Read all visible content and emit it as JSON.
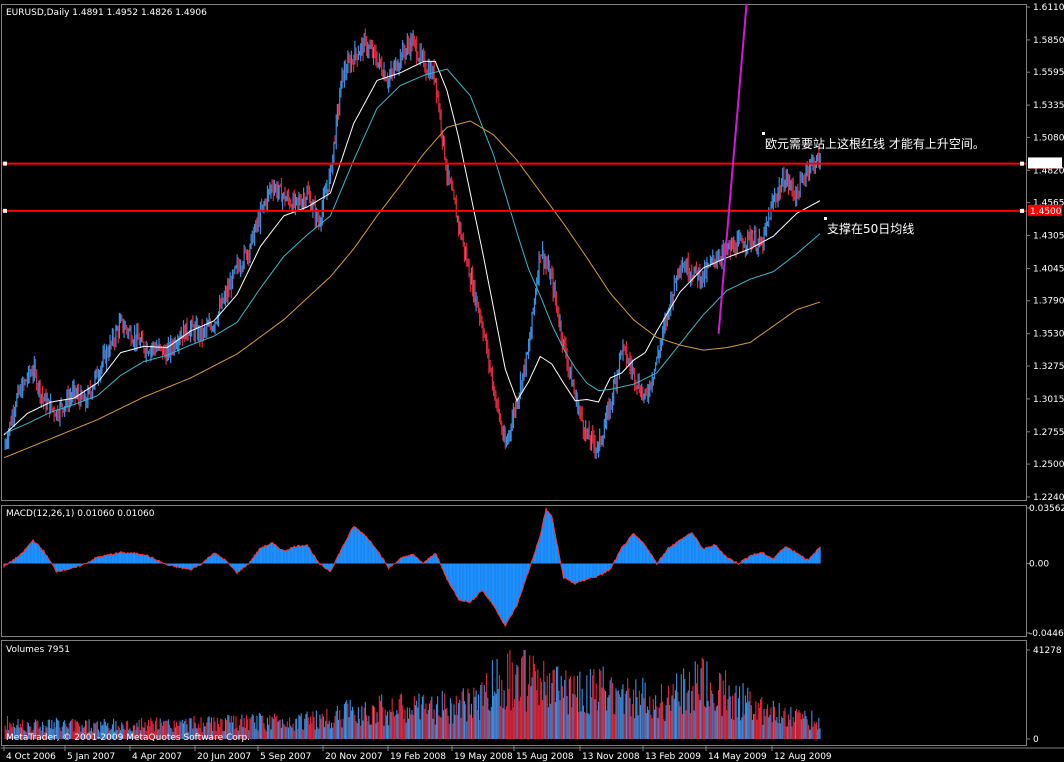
{
  "panels": {
    "price_header": "EURUSD,Daily  1.4891 1.4952 1.4826 1.4906",
    "macd_header": "MACD(12,26,1) 0.01060 0.01060",
    "volume_header": "Volumes 7951",
    "copyright": "MetaTrader, © 2001-2009 MetaQuotes Software Corp."
  },
  "annotations": {
    "resistance_note": "欧元需要站上这根红线 才能有上升空间。",
    "support_note": "支撑在50日均线"
  },
  "colors": {
    "background": "#000000",
    "panel_border": "#808080",
    "bull": "#3b8fe0",
    "bear": "#e0283c",
    "ma_fast": "#ffffff",
    "ma_mid": "#39b7c9",
    "ma_slow": "#d49a3a",
    "hline": "#ff0000",
    "trend": "#d21ad6",
    "macd_fill": "#1e90ff",
    "macd_edge": "#ff3030"
  },
  "chart_data": [
    {
      "type": "candlestick",
      "symbol": "EURUSD",
      "timeframe": "Daily",
      "last": {
        "open": 1.4891,
        "high": 1.4952,
        "low": 1.4826,
        "close": 1.4906
      },
      "ylim": [
        1.224,
        1.611
      ],
      "y_ticks": [
        "1.6110",
        "1.5850",
        "1.5595",
        "1.5335",
        "1.5080",
        "1.4820",
        "1.4565",
        "1.4305",
        "1.4045",
        "1.3790",
        "1.3530",
        "1.3275",
        "1.3015",
        "1.2755",
        "1.2500",
        "1.2240"
      ],
      "price_labels": [
        "1.4873",
        "1.4906",
        "1.4500"
      ],
      "x_ticks": [
        "4 Oct 2006",
        "5 Jan 2007",
        "4 Apr 2007",
        "20 Jun 2007",
        "5 Sep 2007",
        "20 Nov 2007",
        "19 Feb 2008",
        "19 May 2008",
        "15 Aug 2008",
        "13 Nov 2008",
        "13 Feb 2009",
        "14 May 2009",
        "12 Aug 2009"
      ],
      "close_path": [
        [
          0,
          1.262
        ],
        [
          10,
          1.3
        ],
        [
          20,
          1.318
        ],
        [
          25,
          1.325
        ],
        [
          34,
          1.3
        ],
        [
          45,
          1.291
        ],
        [
          60,
          1.306
        ],
        [
          70,
          1.298
        ],
        [
          80,
          1.322
        ],
        [
          90,
          1.341
        ],
        [
          100,
          1.361
        ],
        [
          110,
          1.352
        ],
        [
          120,
          1.343
        ],
        [
          130,
          1.342
        ],
        [
          140,
          1.337
        ],
        [
          150,
          1.352
        ],
        [
          160,
          1.357
        ],
        [
          170,
          1.352
        ],
        [
          180,
          1.362
        ],
        [
          190,
          1.382
        ],
        [
          200,
          1.405
        ],
        [
          210,
          1.42
        ],
        [
          220,
          1.447
        ],
        [
          230,
          1.471
        ],
        [
          240,
          1.461
        ],
        [
          250,
          1.454
        ],
        [
          260,
          1.464
        ],
        [
          270,
          1.441
        ],
        [
          280,
          1.479
        ],
        [
          290,
          1.556
        ],
        [
          300,
          1.572
        ],
        [
          310,
          1.582
        ],
        [
          320,
          1.569
        ],
        [
          330,
          1.553
        ],
        [
          340,
          1.572
        ],
        [
          350,
          1.584
        ],
        [
          360,
          1.566
        ],
        [
          370,
          1.556
        ],
        [
          380,
          1.48
        ],
        [
          390,
          1.44
        ],
        [
          400,
          1.398
        ],
        [
          410,
          1.362
        ],
        [
          420,
          1.31
        ],
        [
          430,
          1.263
        ],
        [
          440,
          1.301
        ],
        [
          450,
          1.34
        ],
        [
          460,
          1.42
        ],
        [
          470,
          1.395
        ],
        [
          480,
          1.345
        ],
        [
          490,
          1.303
        ],
        [
          500,
          1.272
        ],
        [
          510,
          1.263
        ],
        [
          520,
          1.296
        ],
        [
          530,
          1.342
        ],
        [
          540,
          1.322
        ],
        [
          550,
          1.301
        ],
        [
          560,
          1.332
        ],
        [
          570,
          1.372
        ],
        [
          580,
          1.41
        ],
        [
          590,
          1.402
        ],
        [
          600,
          1.398
        ],
        [
          610,
          1.413
        ],
        [
          620,
          1.419
        ],
        [
          630,
          1.423
        ],
        [
          640,
          1.429
        ],
        [
          650,
          1.422
        ],
        [
          660,
          1.458
        ],
        [
          670,
          1.476
        ],
        [
          680,
          1.462
        ],
        [
          690,
          1.486
        ],
        [
          700,
          1.4906
        ]
      ],
      "moving_averages": [
        {
          "role": "fast",
          "color_key": "ma_fast",
          "points": [
            [
              0,
              1.273
            ],
            [
              20,
              1.29
            ],
            [
              40,
              1.299
            ],
            [
              60,
              1.302
            ],
            [
              80,
              1.314
            ],
            [
              100,
              1.338
            ],
            [
              120,
              1.343
            ],
            [
              140,
              1.342
            ],
            [
              160,
              1.355
            ],
            [
              180,
              1.363
            ],
            [
              200,
              1.384
            ],
            [
              220,
              1.422
            ],
            [
              240,
              1.446
            ],
            [
              260,
              1.453
            ],
            [
              280,
              1.464
            ],
            [
              300,
              1.519
            ],
            [
              320,
              1.553
            ],
            [
              340,
              1.559
            ],
            [
              360,
              1.568
            ],
            [
              370,
              1.568
            ],
            [
              380,
              1.545
            ],
            [
              390,
              1.508
            ],
            [
              400,
              1.464
            ],
            [
              410,
              1.42
            ],
            [
              420,
              1.373
            ],
            [
              430,
              1.325
            ],
            [
              440,
              1.3
            ],
            [
              450,
              1.315
            ],
            [
              460,
              1.335
            ],
            [
              470,
              1.329
            ],
            [
              480,
              1.314
            ],
            [
              490,
              1.3
            ],
            [
              500,
              1.301
            ],
            [
              510,
              1.299
            ],
            [
              520,
              1.318
            ],
            [
              530,
              1.322
            ],
            [
              540,
              1.332
            ],
            [
              550,
              1.338
            ],
            [
              560,
              1.355
            ],
            [
              580,
              1.386
            ],
            [
              600,
              1.405
            ],
            [
              620,
              1.413
            ],
            [
              640,
              1.42
            ],
            [
              660,
              1.43
            ],
            [
              680,
              1.448
            ],
            [
              700,
              1.458
            ]
          ]
        },
        {
          "role": "mid",
          "color_key": "ma_mid",
          "points": [
            [
              0,
              1.274
            ],
            [
              20,
              1.282
            ],
            [
              40,
              1.291
            ],
            [
              60,
              1.297
            ],
            [
              80,
              1.304
            ],
            [
              100,
              1.32
            ],
            [
              120,
              1.331
            ],
            [
              140,
              1.336
            ],
            [
              160,
              1.344
            ],
            [
              180,
              1.351
            ],
            [
              200,
              1.362
            ],
            [
              220,
              1.389
            ],
            [
              240,
              1.414
            ],
            [
              260,
              1.431
            ],
            [
              280,
              1.446
            ],
            [
              300,
              1.49
            ],
            [
              320,
              1.531
            ],
            [
              340,
              1.549
            ],
            [
              360,
              1.557
            ],
            [
              380,
              1.562
            ],
            [
              400,
              1.541
            ],
            [
              420,
              1.494
            ],
            [
              440,
              1.433
            ],
            [
              450,
              1.404
            ],
            [
              460,
              1.383
            ],
            [
              470,
              1.36
            ],
            [
              480,
              1.341
            ],
            [
              490,
              1.326
            ],
            [
              500,
              1.314
            ],
            [
              510,
              1.308
            ],
            [
              520,
              1.309
            ],
            [
              540,
              1.313
            ],
            [
              560,
              1.322
            ],
            [
              580,
              1.345
            ],
            [
              600,
              1.368
            ],
            [
              620,
              1.387
            ],
            [
              640,
              1.396
            ],
            [
              660,
              1.402
            ],
            [
              680,
              1.416
            ],
            [
              700,
              1.432
            ]
          ]
        },
        {
          "role": "slow",
          "color_key": "ma_slow",
          "points": [
            [
              0,
              1.255
            ],
            [
              40,
              1.27
            ],
            [
              80,
              1.285
            ],
            [
              120,
              1.303
            ],
            [
              160,
              1.318
            ],
            [
              200,
              1.337
            ],
            [
              240,
              1.364
            ],
            [
              280,
              1.398
            ],
            [
              300,
              1.42
            ],
            [
              320,
              1.446
            ],
            [
              340,
              1.47
            ],
            [
              360,
              1.495
            ],
            [
              380,
              1.516
            ],
            [
              400,
              1.521
            ],
            [
              420,
              1.51
            ],
            [
              440,
              1.49
            ],
            [
              460,
              1.465
            ],
            [
              480,
              1.44
            ],
            [
              500,
              1.413
            ],
            [
              520,
              1.385
            ],
            [
              540,
              1.364
            ],
            [
              560,
              1.35
            ],
            [
              580,
              1.344
            ],
            [
              600,
              1.34
            ],
            [
              620,
              1.342
            ],
            [
              640,
              1.346
            ],
            [
              660,
              1.359
            ],
            [
              680,
              1.372
            ],
            [
              700,
              1.378
            ]
          ]
        }
      ],
      "horizontal_lines": [
        1.4873,
        1.45
      ],
      "trend_line": [
        [
          613,
          1.353
        ],
        [
          637,
          1.611
        ]
      ]
    },
    {
      "type": "histogram",
      "name": "MACD(12,26,1)",
      "ylim": [
        -0.04462,
        0.03562
      ],
      "y_ticks": [
        "0.03562",
        "0.00",
        "-0.04462"
      ],
      "path": [
        [
          0,
          -0.002
        ],
        [
          15,
          0.006
        ],
        [
          25,
          0.015
        ],
        [
          34,
          0.008
        ],
        [
          45,
          -0.005
        ],
        [
          60,
          -0.003
        ],
        [
          70,
          0.0
        ],
        [
          80,
          0.004
        ],
        [
          100,
          0.007
        ],
        [
          120,
          0.006
        ],
        [
          140,
          -0.001
        ],
        [
          160,
          -0.004
        ],
        [
          170,
          0.0
        ],
        [
          180,
          0.007
        ],
        [
          190,
          0.002
        ],
        [
          200,
          -0.006
        ],
        [
          210,
          0.0
        ],
        [
          220,
          0.01
        ],
        [
          230,
          0.013
        ],
        [
          240,
          0.008
        ],
        [
          250,
          0.011
        ],
        [
          260,
          0.012
        ],
        [
          270,
          0.0
        ],
        [
          280,
          -0.005
        ],
        [
          290,
          0.01
        ],
        [
          300,
          0.024
        ],
        [
          310,
          0.018
        ],
        [
          320,
          0.009
        ],
        [
          330,
          -0.003
        ],
        [
          340,
          0.003
        ],
        [
          350,
          0.006
        ],
        [
          360,
          0.0
        ],
        [
          370,
          0.007
        ],
        [
          380,
          -0.01
        ],
        [
          390,
          -0.023
        ],
        [
          400,
          -0.025
        ],
        [
          410,
          -0.017
        ],
        [
          420,
          -0.027
        ],
        [
          430,
          -0.04
        ],
        [
          440,
          -0.027
        ],
        [
          450,
          -0.005
        ],
        [
          460,
          0.018
        ],
        [
          465,
          0.035
        ],
        [
          470,
          0.03
        ],
        [
          480,
          -0.009
        ],
        [
          490,
          -0.013
        ],
        [
          500,
          -0.01
        ],
        [
          510,
          -0.008
        ],
        [
          520,
          -0.004
        ],
        [
          530,
          0.01
        ],
        [
          540,
          0.019
        ],
        [
          550,
          0.012
        ],
        [
          560,
          0.0
        ],
        [
          570,
          0.01
        ],
        [
          580,
          0.015
        ],
        [
          590,
          0.02
        ],
        [
          600,
          0.009
        ],
        [
          610,
          0.012
        ],
        [
          620,
          0.004
        ],
        [
          630,
          0.0
        ],
        [
          640,
          0.005
        ],
        [
          650,
          0.007
        ],
        [
          660,
          0.003
        ],
        [
          670,
          0.011
        ],
        [
          680,
          0.007
        ],
        [
          690,
          0.002
        ],
        [
          700,
          0.0106
        ]
      ]
    },
    {
      "type": "bar",
      "name": "Volumes",
      "ylim": [
        0,
        41278
      ],
      "y_ticks": [
        "41278",
        "0"
      ],
      "last_value": 7951
    }
  ]
}
